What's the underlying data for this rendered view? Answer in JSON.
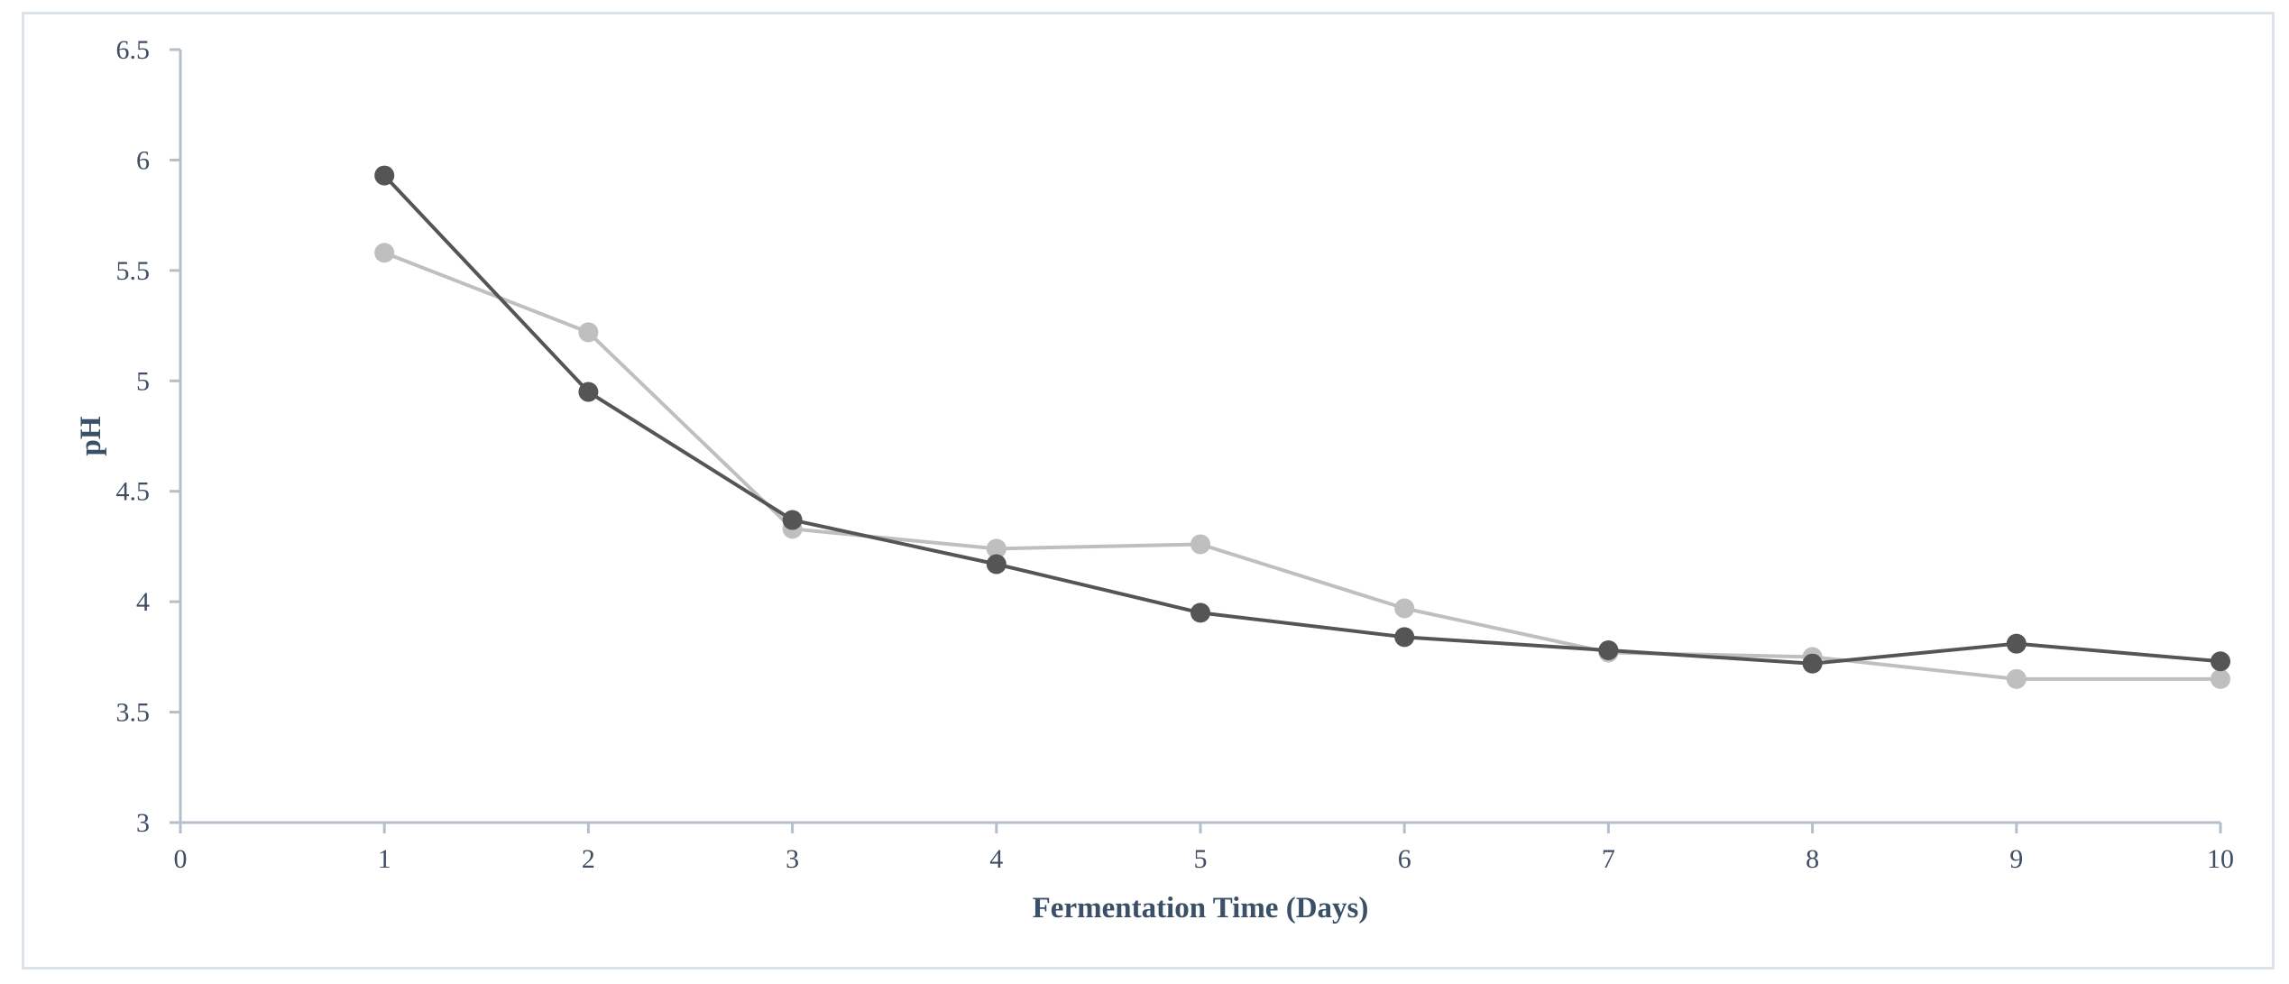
{
  "chart_data": {
    "type": "line",
    "title": "",
    "xlabel": "Fermentation Time (Days)",
    "ylabel": "pH",
    "xlim": [
      0,
      10
    ],
    "ylim": [
      3,
      6.5
    ],
    "x_ticks": [
      0,
      1,
      2,
      3,
      4,
      5,
      6,
      7,
      8,
      9,
      10
    ],
    "y_ticks": [
      3,
      3.5,
      4,
      4.5,
      5,
      5.5,
      6,
      6.5
    ],
    "grid": false,
    "legend": "none",
    "x": [
      1,
      2,
      3,
      4,
      5,
      6,
      7,
      8,
      9,
      10
    ],
    "series": [
      {
        "color": "#555555",
        "values": [
          5.93,
          4.95,
          4.37,
          4.17,
          3.95,
          3.84,
          3.78,
          3.72,
          3.81,
          3.73
        ]
      },
      {
        "color": "#bfbfbf",
        "values": [
          5.58,
          5.22,
          4.33,
          4.24,
          4.26,
          3.97,
          3.77,
          3.75,
          3.65,
          3.65
        ]
      }
    ]
  },
  "colors": {
    "axis": "#b4bfcb",
    "tick_text": "#3f4e63",
    "title_text": "#3a5068",
    "frame_border": "#dce3ea"
  }
}
